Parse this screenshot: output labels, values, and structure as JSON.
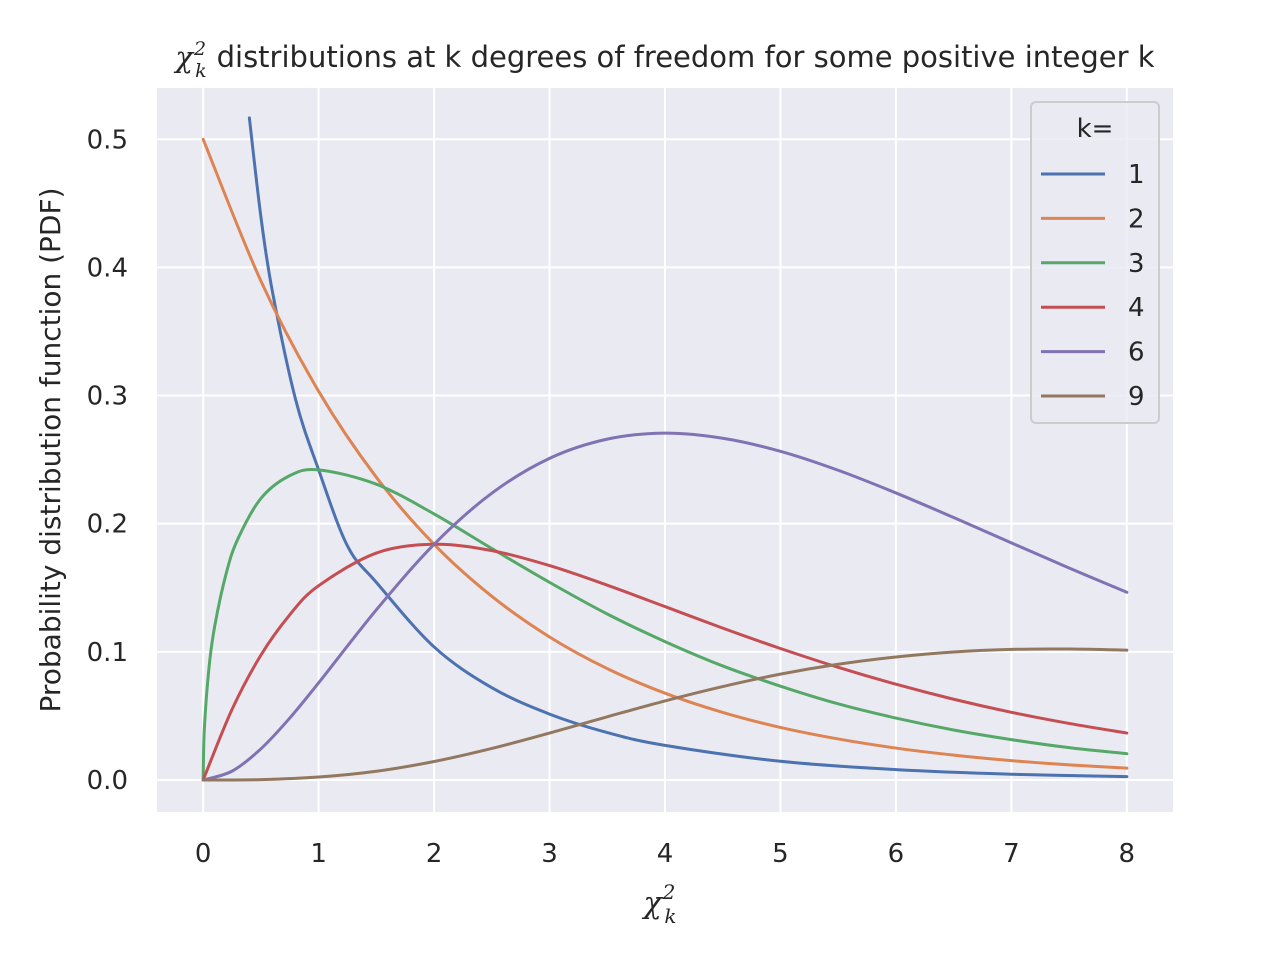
{
  "chart_data": {
    "type": "line",
    "title": {
      "symbol": "χ",
      "subscript": "k",
      "superscript": "2",
      "text": "distributions at k degrees of freedom for some positive integer k"
    },
    "xlabel": {
      "symbol": "χ",
      "subscript": "k",
      "superscript": "2"
    },
    "ylabel": "Probability distribution function (PDF)",
    "xlim": [
      -0.4,
      8.4
    ],
    "ylim": [
      -0.025,
      0.54
    ],
    "x_ticks": [
      0,
      1,
      2,
      3,
      4,
      5,
      6,
      7,
      8
    ],
    "y_ticks": [
      0.0,
      0.1,
      0.2,
      0.3,
      0.4,
      0.5
    ],
    "y_tick_labels": [
      "0.0",
      "0.1",
      "0.2",
      "0.3",
      "0.4",
      "0.5"
    ],
    "grid": true,
    "legend": {
      "title": "k=",
      "placement": "top-right"
    },
    "series": [
      {
        "name": "1",
        "k": 1,
        "color": "#4c72b0",
        "x": [
          0.4,
          0.5,
          0.6,
          0.8,
          1.0,
          1.25,
          1.5,
          2.0,
          2.5,
          3.0,
          3.5,
          4.0,
          5.0,
          6.0,
          7.0,
          8.0
        ],
        "y": [
          0.5167,
          0.4394,
          0.381,
          0.297,
          0.242,
          0.1826,
          0.1542,
          0.1038,
          0.072,
          0.0514,
          0.037,
          0.027,
          0.0146,
          0.0081,
          0.0045,
          0.0026
        ]
      },
      {
        "name": "2",
        "k": 2,
        "color": "#dd8452",
        "x": [
          0,
          0.5,
          1,
          1.5,
          2,
          2.5,
          3,
          3.5,
          4,
          4.5,
          5,
          5.5,
          6,
          6.5,
          7,
          7.5,
          8
        ],
        "y": [
          0.5,
          0.3894,
          0.3033,
          0.2362,
          0.1839,
          0.1433,
          0.1116,
          0.0869,
          0.0677,
          0.0527,
          0.041,
          0.032,
          0.0249,
          0.0194,
          0.0151,
          0.0118,
          0.0092
        ]
      },
      {
        "name": "3",
        "k": 3,
        "color": "#55a868",
        "x": [
          0,
          0.01,
          0.05,
          0.1,
          0.2,
          0.3,
          0.5,
          0.75,
          1,
          1.5,
          2,
          2.5,
          3,
          3.5,
          4,
          4.5,
          5,
          5.5,
          6,
          6.5,
          7,
          7.5,
          8
        ],
        "y": [
          0,
          0.0397,
          0.0873,
          0.1201,
          0.1614,
          0.188,
          0.2197,
          0.2375,
          0.242,
          0.2308,
          0.2076,
          0.1806,
          0.1542,
          0.1295,
          0.108,
          0.089,
          0.0732,
          0.0594,
          0.0483,
          0.039,
          0.0315,
          0.0252,
          0.0205
        ]
      },
      {
        "name": "4",
        "k": 4,
        "color": "#c44e52",
        "x": [
          0,
          0.25,
          0.5,
          0.75,
          1,
          1.5,
          2,
          2.5,
          3,
          3.5,
          4,
          4.5,
          5,
          5.5,
          6,
          6.5,
          7,
          7.5,
          8
        ],
        "y": [
          0,
          0.0551,
          0.0974,
          0.1289,
          0.1516,
          0.1771,
          0.1839,
          0.179,
          0.1673,
          0.152,
          0.1353,
          0.1185,
          0.1026,
          0.0879,
          0.0747,
          0.063,
          0.0528,
          0.0441,
          0.0366
        ]
      },
      {
        "name": "6",
        "k": 6,
        "color": "#8172b3",
        "x": [
          0,
          0.25,
          0.5,
          0.75,
          1,
          1.5,
          2,
          2.5,
          3,
          3.5,
          4,
          4.5,
          5,
          5.5,
          6,
          6.5,
          7,
          7.5,
          8
        ],
        "y": [
          0,
          0.0069,
          0.0243,
          0.0483,
          0.0758,
          0.1328,
          0.1839,
          0.2238,
          0.251,
          0.266,
          0.2707,
          0.2667,
          0.2565,
          0.2417,
          0.224,
          0.2048,
          0.185,
          0.1654,
          0.1465
        ]
      },
      {
        "name": "9",
        "k": 9,
        "color": "#937860",
        "x": [
          0,
          0.5,
          1,
          1.5,
          2,
          2.5,
          3,
          3.5,
          4,
          4.5,
          5,
          5.5,
          6,
          6.5,
          7,
          7.5,
          8
        ],
        "y": [
          0,
          0.0003,
          0.0023,
          0.0068,
          0.0144,
          0.0246,
          0.0366,
          0.0493,
          0.0617,
          0.0729,
          0.0826,
          0.0903,
          0.096,
          0.0999,
          0.1019,
          0.1022,
          0.1013
        ]
      }
    ]
  }
}
